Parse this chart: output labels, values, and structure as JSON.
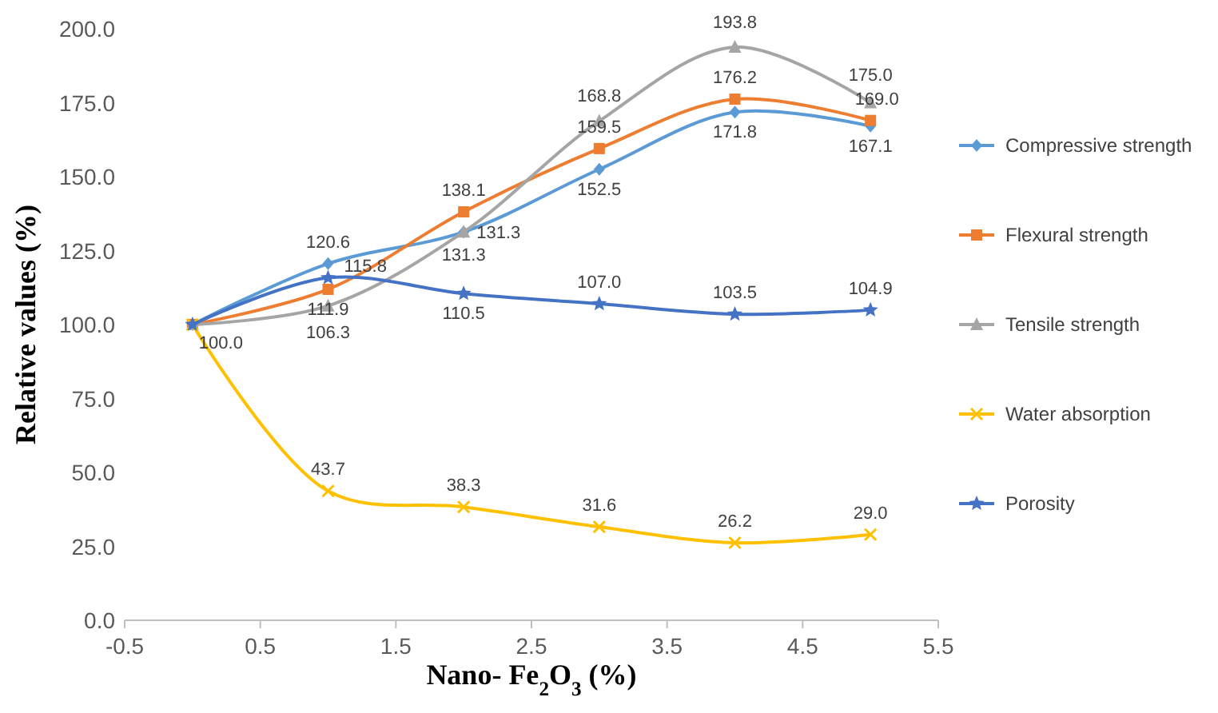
{
  "chart_data": {
    "type": "line",
    "xlabel": "Nano- Fe$_{2}$O$_{3}$ (%)",
    "ylabel": "Relative values (%)",
    "x": [
      0,
      1,
      2,
      3,
      4,
      5
    ],
    "xlim": [
      -0.5,
      5.5
    ],
    "xticks": [
      {
        "value": -0.5,
        "label": "-0.5"
      },
      {
        "value": 0.5,
        "label": "0.5"
      },
      {
        "value": 1.5,
        "label": "1.5"
      },
      {
        "value": 2.5,
        "label": "2.5"
      },
      {
        "value": 3.5,
        "label": "3.5"
      },
      {
        "value": 4.5,
        "label": "4.5"
      },
      {
        "value": 5.5,
        "label": "5.5"
      }
    ],
    "ylim": [
      0,
      200
    ],
    "yticks": [
      {
        "value": 0,
        "label": "0.0"
      },
      {
        "value": 25,
        "label": "25.0"
      },
      {
        "value": 50,
        "label": "50.0"
      },
      {
        "value": 75,
        "label": "75.0"
      },
      {
        "value": 100,
        "label": "100.0"
      },
      {
        "value": 125,
        "label": "125.0"
      },
      {
        "value": 150,
        "label": "150.0"
      },
      {
        "value": 175,
        "label": "175.0"
      },
      {
        "value": 200,
        "label": "200.0"
      }
    ],
    "grid": false,
    "legend": "right",
    "series": [
      {
        "name": "Compressive strength",
        "color": "#5b9bd5",
        "marker": "diamond",
        "values": [
          100,
          120.6,
          131.3,
          152.5,
          171.8,
          167.1
        ],
        "value_labels": [
          null,
          "120.6",
          "131.3",
          "152.5",
          "171.8",
          "167.1"
        ]
      },
      {
        "name": "Flexural strength",
        "color": "#ed7d31",
        "marker": "square",
        "values": [
          100,
          111.9,
          138.1,
          159.5,
          176.2,
          169.0
        ],
        "value_labels": [
          null,
          "111.9",
          "138.1",
          "159.5",
          "176.2",
          "169.0"
        ]
      },
      {
        "name": "Tensile strength",
        "color": "#a5a5a5",
        "marker": "triangle",
        "values": [
          100,
          106.3,
          131.3,
          168.8,
          193.8,
          175.0
        ],
        "value_labels": [
          null,
          "106.3",
          "131.3",
          "168.8",
          "193.8",
          "175.0"
        ]
      },
      {
        "name": "Water absorption",
        "color": "#ffc000",
        "marker": "cross",
        "values": [
          100,
          43.7,
          38.3,
          31.6,
          26.2,
          29.0
        ],
        "value_labels": [
          null,
          "43.7",
          "38.3",
          "31.6",
          "26.2",
          "29.0"
        ]
      },
      {
        "name": "Porosity",
        "color": "#4472c4",
        "marker": "star",
        "values": [
          100,
          115.8,
          110.5,
          107.0,
          103.5,
          104.9
        ],
        "value_labels": [
          "100.0",
          "115.8",
          "110.5",
          "107.0",
          "103.5",
          "104.9"
        ]
      }
    ]
  }
}
